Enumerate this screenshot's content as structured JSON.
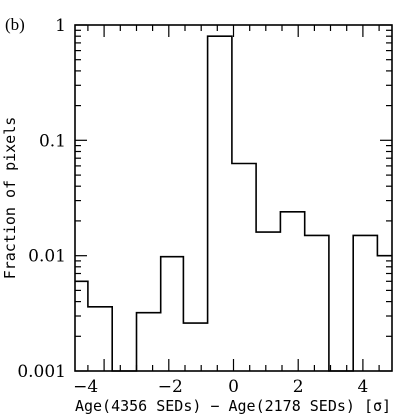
{
  "chart_data": {
    "type": "bar",
    "style": "step-histogram",
    "panel_label": "(b)",
    "title": "",
    "xlabel": "Age(4356 SEDs) − Age(2178 SEDs) [σ]",
    "ylabel": "Fraction of pixels",
    "yscale": "log",
    "xlim": [
      -4.9,
      4.9
    ],
    "ylim": [
      0.001,
      1
    ],
    "grid": false,
    "bin_width": 0.72,
    "x_ticks": [
      "−4",
      "−2",
      "0",
      "2",
      "4"
    ],
    "x_tick_values": [
      -4,
      -2,
      0,
      2,
      4
    ],
    "y_ticks": [
      "0.001",
      "0.01",
      "0.1",
      "1"
    ],
    "y_tick_values": [
      0.001,
      0.01,
      0.1,
      1
    ],
    "bins": [
      {
        "x0": -4.9,
        "x1": -4.5,
        "value": 0.006
      },
      {
        "x0": -4.5,
        "x1": -3.75,
        "value": 0.0036
      },
      {
        "x0": -3.75,
        "x1": -3.0,
        "value": 0.001
      },
      {
        "x0": -3.0,
        "x1": -2.25,
        "value": 0.0032
      },
      {
        "x0": -2.25,
        "x1": -1.55,
        "value": 0.0098
      },
      {
        "x0": -1.55,
        "x1": -0.8,
        "value": 0.0026
      },
      {
        "x0": -0.8,
        "x1": -0.05,
        "value": 0.8
      },
      {
        "x0": -0.05,
        "x1": 0.7,
        "value": 0.063
      },
      {
        "x0": 0.7,
        "x1": 1.45,
        "value": 0.016
      },
      {
        "x0": 1.45,
        "x1": 2.2,
        "value": 0.024
      },
      {
        "x0": 2.2,
        "x1": 2.95,
        "value": 0.015
      },
      {
        "x0": 2.95,
        "x1": 3.7,
        "value": 0.001
      },
      {
        "x0": 3.7,
        "x1": 4.45,
        "value": 0.015
      },
      {
        "x0": 4.45,
        "x1": 4.9,
        "value": 0.01
      }
    ]
  }
}
